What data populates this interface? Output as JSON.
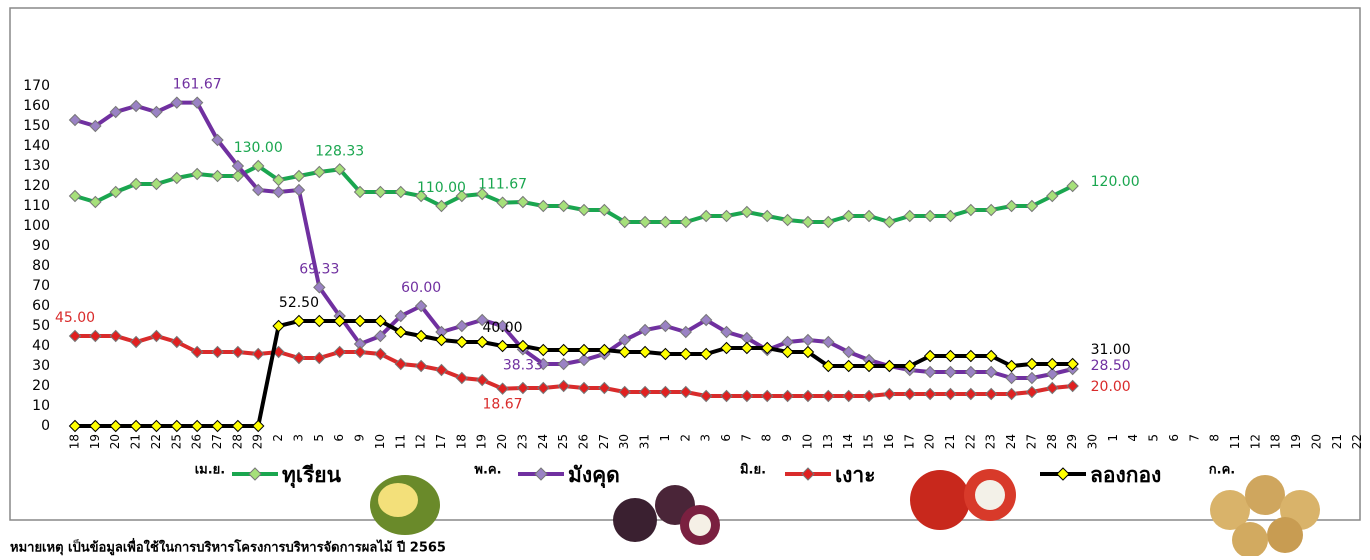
{
  "chart_data": {
    "type": "line",
    "categories": [
      "18",
      "19",
      "20",
      "21",
      "22",
      "25",
      "26",
      "27",
      "28",
      "29",
      "2",
      "3",
      "5",
      "6",
      "9",
      "10",
      "11",
      "12",
      "17",
      "18",
      "19",
      "20",
      "23",
      "24",
      "25",
      "26",
      "27",
      "30",
      "31",
      "1",
      "2",
      "3",
      "6",
      "7",
      "8",
      "9",
      "10",
      "13",
      "14",
      "15",
      "16",
      "17",
      "20",
      "21",
      "22",
      "23",
      "24",
      "27",
      "28",
      "29",
      "30",
      "1",
      "4",
      "5",
      "6",
      "7",
      "8",
      "11",
      "12",
      "18",
      "19",
      "20",
      "21",
      "22"
    ],
    "months": [
      "เม.ย.",
      "พ.ค.",
      "มิ.ย.",
      "ก.ค."
    ],
    "ylim": [
      0,
      170
    ],
    "yticks": [
      0,
      10,
      20,
      30,
      40,
      50,
      60,
      70,
      80,
      90,
      100,
      110,
      120,
      130,
      140,
      150,
      160,
      170
    ],
    "grid": false,
    "series": [
      {
        "name": "ทุเรียน",
        "color": "#1aa64f",
        "marker": "#a6e07a",
        "values": [
          115,
          112,
          117,
          121,
          121,
          124,
          126,
          125,
          125,
          130,
          123,
          125,
          127,
          128.33,
          117,
          117,
          117,
          115,
          110,
          115,
          116,
          111.67,
          112,
          110,
          110,
          108,
          108,
          102,
          102,
          102,
          102,
          105,
          105,
          107,
          105,
          103,
          102,
          102,
          105,
          105,
          102,
          105,
          105,
          105,
          108,
          108,
          110,
          110,
          115,
          120,
          null,
          null,
          null,
          null,
          null,
          null,
          null,
          null,
          null,
          null,
          null,
          null,
          null,
          null
        ],
        "value_labels": [
          null,
          null,
          null,
          null,
          null,
          null,
          null,
          null,
          null,
          "130.00",
          null,
          null,
          null,
          "128.33",
          null,
          null,
          null,
          null,
          "110.00",
          null,
          null,
          "111.67",
          null,
          null,
          null,
          null,
          null,
          null,
          null,
          null,
          null,
          null,
          null,
          null,
          null,
          null,
          null,
          null,
          null,
          null,
          null,
          null,
          null,
          null,
          null,
          null,
          null,
          null,
          null,
          "120.00",
          null,
          null,
          null,
          null,
          null,
          null,
          null,
          null,
          null,
          null,
          null,
          null,
          null,
          null
        ]
      },
      {
        "name": "มังคุด",
        "color": "#7030a0",
        "marker": "#9a82c4",
        "values": [
          153,
          150,
          157,
          160,
          157,
          161.67,
          161.67,
          143,
          130,
          118,
          117,
          118,
          69.33,
          55,
          41,
          45,
          55,
          60,
          47,
          50,
          53,
          50,
          38.33,
          31,
          31,
          33,
          36,
          43,
          48,
          50,
          47,
          53,
          47,
          44,
          38,
          42,
          43,
          42,
          37,
          33,
          30,
          28,
          27,
          27,
          27,
          27,
          24,
          24,
          26,
          28.5,
          null,
          null,
          null,
          null,
          null,
          null,
          null,
          null,
          null,
          null,
          null,
          null,
          null,
          null
        ],
        "value_labels": [
          null,
          null,
          null,
          null,
          null,
          null,
          "161.67",
          null,
          null,
          null,
          null,
          null,
          "69.33",
          null,
          null,
          null,
          null,
          "60.00",
          null,
          null,
          null,
          null,
          "38.33",
          null,
          null,
          null,
          null,
          null,
          null,
          null,
          null,
          null,
          null,
          null,
          null,
          null,
          null,
          null,
          null,
          null,
          null,
          null,
          null,
          null,
          null,
          null,
          null,
          null,
          null,
          "28.50",
          null,
          null,
          null,
          null,
          null,
          null,
          null,
          null,
          null,
          null,
          null,
          null,
          null,
          null
        ]
      },
      {
        "name": "เงาะ",
        "color": "#d92b2b",
        "marker": "#e02020",
        "values": [
          45,
          45,
          45,
          42,
          45,
          42,
          37,
          37,
          37,
          36,
          37,
          34,
          34,
          37,
          37,
          36,
          31,
          30,
          28,
          24,
          23,
          18.67,
          19,
          19,
          20,
          19,
          19,
          17,
          17,
          17,
          17,
          15,
          15,
          15,
          15,
          15,
          15,
          15,
          15,
          15,
          16,
          16,
          16,
          16,
          16,
          16,
          16,
          17,
          19,
          20,
          null,
          null,
          null,
          null,
          null,
          null,
          null,
          null,
          null,
          null,
          null,
          null,
          null,
          null
        ],
        "value_labels": [
          "45.00",
          null,
          null,
          null,
          null,
          null,
          null,
          null,
          null,
          null,
          null,
          null,
          null,
          null,
          null,
          null,
          null,
          null,
          null,
          null,
          null,
          "18.67",
          null,
          null,
          null,
          null,
          null,
          null,
          null,
          null,
          null,
          null,
          null,
          null,
          null,
          null,
          null,
          null,
          null,
          null,
          null,
          null,
          null,
          null,
          null,
          null,
          null,
          null,
          null,
          "20.00",
          null,
          null,
          null,
          null,
          null,
          null,
          null,
          null,
          null,
          null,
          null,
          null,
          null,
          null
        ]
      },
      {
        "name": "ลองกอง",
        "color": "#000000",
        "marker": "#ffff00",
        "values": [
          0,
          0,
          0,
          0,
          0,
          0,
          0,
          0,
          0,
          0,
          50,
          52.5,
          52.5,
          52.5,
          52.5,
          52.5,
          47,
          45,
          43,
          42,
          42,
          40,
          40,
          38,
          38,
          38,
          38,
          37,
          37,
          36,
          36,
          36,
          39,
          39,
          39,
          37,
          37,
          30,
          30,
          30,
          30,
          30,
          35,
          35,
          35,
          35,
          30,
          31,
          31,
          31,
          null,
          null,
          null,
          null,
          null,
          null,
          null,
          null,
          null,
          null,
          null,
          null,
          null,
          null
        ],
        "value_labels": [
          null,
          null,
          null,
          null,
          null,
          null,
          null,
          null,
          null,
          null,
          null,
          "52.50",
          null,
          null,
          null,
          null,
          null,
          null,
          null,
          null,
          null,
          "40.00",
          null,
          null,
          null,
          null,
          null,
          null,
          null,
          null,
          null,
          null,
          null,
          null,
          null,
          null,
          null,
          null,
          null,
          null,
          null,
          null,
          null,
          null,
          null,
          null,
          null,
          null,
          null,
          "31.00",
          null,
          null,
          null,
          null,
          null,
          null,
          null,
          null,
          null,
          null,
          null,
          null,
          null,
          null
        ]
      }
    ]
  },
  "note": "หมายเหตุ เป็นข้อมูลเพื่อใช้ในการบริหารโครงการบริหารจัดการผลไม้ ปี 2565"
}
